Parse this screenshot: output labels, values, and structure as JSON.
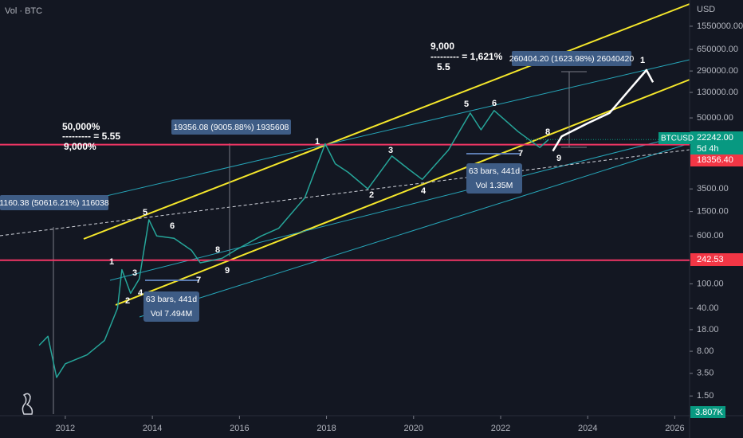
{
  "chart_data": {
    "type": "line",
    "log_scale": true,
    "grid": false,
    "volume_label": "Vol · BTC",
    "y_unit": "USD",
    "symbol": "BTCUSD",
    "countdown": "5d 4h",
    "volume_value": "3.807K",
    "xlim": [
      2010.5,
      2026.34
    ],
    "xticks": [
      2012,
      2014,
      2016,
      2018,
      2020,
      2022,
      2024,
      2026
    ],
    "ylim": [
      0.76,
      4140000
    ],
    "yticks": [
      {
        "value": 1550000,
        "label": "1550000.00"
      },
      {
        "value": 650000,
        "label": "650000.00"
      },
      {
        "value": 290000,
        "label": "290000.00"
      },
      {
        "value": 130000,
        "label": "130000.00"
      },
      {
        "value": 50000,
        "label": "50000.00"
      },
      {
        "value": 3500,
        "label": "3500.00"
      },
      {
        "value": 1500,
        "label": "1500.00"
      },
      {
        "value": 600,
        "label": "600.00"
      },
      {
        "value": 100,
        "label": "100.00"
      },
      {
        "value": 40,
        "label": "40.00"
      },
      {
        "value": 18,
        "label": "18.00"
      },
      {
        "value": 8,
        "label": "8.00"
      },
      {
        "value": 3.5,
        "label": "3.50"
      },
      {
        "value": 1.5,
        "label": "1.50"
      }
    ],
    "price_labels": [
      {
        "value": 22242,
        "label": "22242.00"
      },
      {
        "value": 18356.4,
        "label": "18356.40"
      },
      {
        "value": 242.53,
        "label": "242.53"
      }
    ],
    "series": [
      {
        "color": "#26a69a",
        "x": [
          2011.4,
          2011.6,
          2011.8,
          2012.0,
          2012.5,
          2012.9,
          2013.2,
          2013.3,
          2013.5,
          2013.7,
          2013.92,
          2014.1,
          2014.5,
          2014.9,
          2015.1,
          2015.6,
          2015.9,
          2016.5,
          2016.9,
          2017.5,
          2017.97,
          2018.2,
          2018.5,
          2018.95,
          2019.5,
          2019.9,
          2020.2,
          2020.8,
          2021.3,
          2021.55,
          2021.85,
          2022.4,
          2022.9,
          2023.1
        ],
        "values": [
          10,
          14,
          3,
          5,
          7,
          12,
          40,
          170,
          70,
          120,
          1100,
          600,
          550,
          350,
          220,
          260,
          350,
          600,
          800,
          2500,
          19000,
          9000,
          6500,
          3500,
          12000,
          7200,
          5000,
          15000,
          60000,
          32000,
          66000,
          30000,
          16500,
          22242
        ]
      },
      {
        "color": "#ffffff",
        "x": [
          2023.2,
          2023.4,
          2024.0,
          2024.5,
          2025.0,
          2025.35,
          2025.5
        ],
        "values": [
          14500,
          25000,
          41000,
          60000,
          155000,
          300000,
          190000
        ]
      }
    ],
    "annotations": [
      "50,000%",
      "--------- = 5.55",
      "9,000%",
      "9,000",
      "--------- = 1,621%",
      "5.5"
    ],
    "measure_labels": [
      "19356.08 (9005.88%) 1935608",
      "1160.38 (50616.21%) 116038",
      "260404.20 (1623.98%) 26040420"
    ],
    "range_labels": [
      "63 bars, 441d",
      "Vol 7.494M",
      "63 bars, 441d",
      "Vol 1.35M"
    ],
    "wave_labels": [
      "1",
      "2",
      "3",
      "4",
      "5",
      "6",
      "7",
      "8",
      "9",
      "1",
      "2",
      "3",
      "4",
      "5",
      "6",
      "7",
      "8",
      "9",
      "1"
    ]
  }
}
